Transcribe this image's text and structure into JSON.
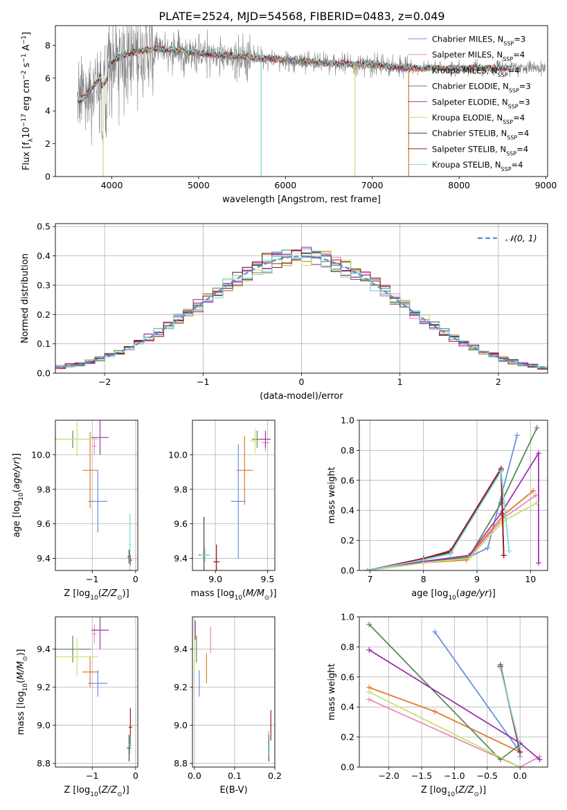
{
  "title": "PLATE=2524, MJD=54568, FIBERID=0483, z=0.049",
  "colors": {
    "chabrier_miles": "#6a8fe0",
    "salpeter_miles": "#e88ab8",
    "kroupa_miles": "#e07a2a",
    "chabrier_elodie": "#5a8a5a",
    "salpeter_elodie": "#a030b0",
    "kroupa_elodie": "#c8e070",
    "chabrier_stelib": "#404040",
    "salpeter_stelib": "#a01818",
    "kroupa_stelib": "#78d8d8",
    "data": "#808080",
    "grid": "#b0b0b0",
    "normal": "#5b88d6"
  },
  "legend": [
    {
      "key": "chabrier_miles",
      "label": "Chabrier MILES, N",
      "sub": "SSP",
      "eq": "=3"
    },
    {
      "key": "salpeter_miles",
      "label": "Salpeter MILES, N",
      "sub": "SSP",
      "eq": "=4"
    },
    {
      "key": "kroupa_miles",
      "label": "Kroupa MILES, N",
      "sub": "SSP",
      "eq": "=4"
    },
    {
      "key": "chabrier_elodie",
      "label": "Chabrier ELODIE, N",
      "sub": "SSP",
      "eq": "=3"
    },
    {
      "key": "salpeter_elodie",
      "label": "Salpeter ELODIE, N",
      "sub": "SSP",
      "eq": "=3"
    },
    {
      "key": "kroupa_elodie",
      "label": "Kroupa ELODIE, N",
      "sub": "SSP",
      "eq": "=4"
    },
    {
      "key": "chabrier_stelib",
      "label": "Chabrier STELIB, N",
      "sub": "SSP",
      "eq": "=4"
    },
    {
      "key": "salpeter_stelib",
      "label": "Salpeter STELIB, N",
      "sub": "SSP",
      "eq": "=4"
    },
    {
      "key": "kroupa_stelib",
      "label": "Kroupa STELIB, N",
      "sub": "SSP",
      "eq": "=4"
    }
  ],
  "chart_data": [
    {
      "id": "spectrum",
      "type": "line",
      "xlabel": "wavelength [Angstrom, rest frame]",
      "ylabel": "Flux [f_λ 10^-17 erg cm^-2 s^-1 A^-1]",
      "xlim": [
        3350,
        9020
      ],
      "ylim": [
        0,
        9.2
      ],
      "xticks": [
        4000,
        5000,
        6000,
        7000,
        8000,
        9000
      ],
      "yticks": [
        0,
        2,
        4,
        6,
        8
      ],
      "continuum_x": [
        3600,
        3700,
        3800,
        3900,
        4000,
        4100,
        4200,
        4300,
        4400,
        4500,
        4700,
        5000,
        5500,
        6000,
        6500,
        7000,
        7400
      ],
      "continuum_y": [
        4.5,
        4.9,
        5.6,
        6.3,
        7.0,
        7.3,
        7.5,
        7.6,
        7.7,
        7.8,
        7.7,
        7.5,
        7.3,
        7.1,
        6.9,
        6.8,
        6.6
      ],
      "models_end_x": 8600
    },
    {
      "id": "residuals",
      "type": "line",
      "xlabel": "(data-model)/error",
      "ylabel": "Normed distribution",
      "xlim": [
        -2.5,
        2.5
      ],
      "ylim": [
        0,
        0.51
      ],
      "xticks": [
        -2,
        -1,
        0,
        1,
        2
      ],
      "yticks": [
        0.0,
        0.1,
        0.2,
        0.3,
        0.4,
        0.5
      ],
      "legend": "N(0,1)",
      "bin_width": 0.1
    },
    {
      "id": "age_vs_Z",
      "type": "scatter",
      "xlabel": "Z [log10(Z/Z☉)]",
      "ylabel": "age  [log10(age/yr)]",
      "xlim": [
        -1.85,
        0.05
      ],
      "ylim": [
        9.33,
        10.2
      ],
      "xticks": [
        -1,
        0
      ],
      "yticks": [
        9.4,
        9.6,
        9.8,
        10.0
      ],
      "points": [
        {
          "key": "chabrier_miles",
          "x": -0.87,
          "y": 9.73,
          "xerr": 0.22,
          "yerr": 0.18
        },
        {
          "key": "salpeter_miles",
          "x": -0.95,
          "y": 10.05,
          "xerr": 0.05,
          "yerr": 0.05
        },
        {
          "key": "kroupa_miles",
          "x": -1.05,
          "y": 9.91,
          "xerr": 0.18,
          "yerr": 0.22
        },
        {
          "key": "chabrier_elodie",
          "x": -1.45,
          "y": 10.09,
          "xerr": 0.42,
          "yerr": 0.05
        },
        {
          "key": "salpeter_elodie",
          "x": -0.82,
          "y": 10.1,
          "xerr": 0.2,
          "yerr": 0.1
        },
        {
          "key": "kroupa_elodie",
          "x": -1.35,
          "y": 10.09,
          "xerr": 0.48,
          "yerr": 0.1
        },
        {
          "key": "chabrier_stelib",
          "x": -0.15,
          "y": 9.41,
          "xerr": 0.04,
          "yerr": 0.04
        },
        {
          "key": "salpeter_stelib",
          "x": -0.12,
          "y": 9.39,
          "xerr": 0.04,
          "yerr": 0.03
        },
        {
          "key": "kroupa_stelib",
          "x": -0.13,
          "y": 9.48,
          "xerr": 0.02,
          "yerr": 0.18
        }
      ]
    },
    {
      "id": "age_vs_mass",
      "type": "scatter",
      "xlabel": "mass [log10(M/M☉)]",
      "ylabel": "",
      "xlim": [
        8.78,
        9.57
      ],
      "ylim": [
        9.33,
        10.2
      ],
      "xticks": [
        9.0,
        9.5
      ],
      "yticks": [
        9.4,
        9.6,
        9.8,
        10.0
      ],
      "points": [
        {
          "key": "chabrier_miles",
          "x": 9.22,
          "y": 9.73,
          "xerr": 0.07,
          "yerr": 0.33
        },
        {
          "key": "salpeter_miles",
          "x": 9.48,
          "y": 10.07,
          "xerr": 0.04,
          "yerr": 0.05
        },
        {
          "key": "kroupa_miles",
          "x": 9.28,
          "y": 9.91,
          "xerr": 0.08,
          "yerr": 0.2
        },
        {
          "key": "chabrier_elodie",
          "x": 9.4,
          "y": 10.09,
          "xerr": 0.05,
          "yerr": 0.05
        },
        {
          "key": "salpeter_elodie",
          "x": 9.48,
          "y": 10.09,
          "xerr": 0.05,
          "yerr": 0.05
        },
        {
          "key": "kroupa_elodie",
          "x": 9.38,
          "y": 10.08,
          "xerr": 0.05,
          "yerr": 0.07
        },
        {
          "key": "chabrier_stelib",
          "x": 8.89,
          "y": 9.42,
          "xerr": 0.05,
          "yerr": 0.22
        },
        {
          "key": "salpeter_stelib",
          "x": 9.01,
          "y": 9.38,
          "xerr": 0.03,
          "yerr": 0.1
        },
        {
          "key": "kroupa_stelib",
          "x": 8.9,
          "y": 9.42,
          "xerr": 0.05,
          "yerr": 0.04
        }
      ]
    },
    {
      "id": "weight_vs_age",
      "type": "line",
      "xlabel": "age  [log10(age/yr)]",
      "ylabel": "mass weight",
      "xlim": [
        6.8,
        10.32
      ],
      "ylim": [
        0,
        1.0
      ],
      "xticks": [
        7,
        8,
        9,
        10
      ],
      "yticks": [
        0.0,
        0.2,
        0.4,
        0.6,
        0.8,
        1.0
      ],
      "series": [
        {
          "key": "chabrier_miles",
          "x": [
            6.95,
            8.0,
            8.8,
            9.2,
            9.75
          ],
          "y": [
            0.0,
            0.06,
            0.08,
            0.15,
            0.9
          ]
        },
        {
          "key": "salpeter_miles",
          "x": [
            6.95,
            8.0,
            8.8,
            9.5,
            10.1
          ],
          "y": [
            0.0,
            0.05,
            0.07,
            0.35,
            0.5
          ]
        },
        {
          "key": "kroupa_miles",
          "x": [
            6.95,
            8.0,
            8.8,
            9.5,
            10.05
          ],
          "y": [
            0.0,
            0.05,
            0.07,
            0.37,
            0.53
          ]
        },
        {
          "key": "chabrier_elodie",
          "x": [
            6.95,
            8.0,
            8.85,
            9.45,
            10.12
          ],
          "y": [
            0.0,
            0.06,
            0.09,
            0.45,
            0.95
          ]
        },
        {
          "key": "salpeter_elodie",
          "x": [
            6.95,
            8.0,
            8.85,
            9.45,
            10.15,
            10.15
          ],
          "y": [
            0.0,
            0.06,
            0.1,
            0.38,
            0.78,
            0.05
          ]
        },
        {
          "key": "kroupa_elodie",
          "x": [
            6.95,
            8.0,
            8.85,
            9.5,
            10.12
          ],
          "y": [
            0.0,
            0.05,
            0.08,
            0.33,
            0.45
          ]
        },
        {
          "key": "chabrier_stelib",
          "x": [
            6.95,
            8.0,
            8.5,
            9.45,
            9.5
          ],
          "y": [
            0.0,
            0.08,
            0.12,
            0.67,
            0.1
          ]
        },
        {
          "key": "salpeter_stelib",
          "x": [
            6.95,
            8.0,
            8.5,
            9.45,
            9.5
          ],
          "y": [
            0.0,
            0.08,
            0.13,
            0.68,
            0.1
          ]
        },
        {
          "key": "kroupa_stelib",
          "x": [
            6.95,
            8.0,
            8.5,
            9.45,
            9.6
          ],
          "y": [
            0.0,
            0.07,
            0.11,
            0.66,
            0.13
          ]
        }
      ]
    },
    {
      "id": "mass_vs_Z",
      "type": "scatter",
      "xlabel": "Z [log10(Z/Z☉)]",
      "ylabel": "mass [log10(M/M☉)]",
      "xlim": [
        -1.85,
        0.05
      ],
      "ylim": [
        8.78,
        9.57
      ],
      "xticks": [
        -1,
        0
      ],
      "yticks": [
        8.8,
        9.0,
        9.2,
        9.4
      ],
      "points": [
        {
          "key": "chabrier_miles",
          "x": -0.87,
          "y": 9.22,
          "xerr": 0.22,
          "yerr": 0.07
        },
        {
          "key": "salpeter_miles",
          "x": -0.95,
          "y": 9.48,
          "xerr": 0.05,
          "yerr": 0.05
        },
        {
          "key": "kroupa_miles",
          "x": -1.05,
          "y": 9.28,
          "xerr": 0.18,
          "yerr": 0.08
        },
        {
          "key": "chabrier_elodie",
          "x": -1.45,
          "y": 9.4,
          "xerr": 0.42,
          "yerr": 0.07
        },
        {
          "key": "salpeter_elodie",
          "x": -0.82,
          "y": 9.5,
          "xerr": 0.2,
          "yerr": 0.1
        },
        {
          "key": "kroupa_elodie",
          "x": -1.35,
          "y": 9.36,
          "xerr": 0.48,
          "yerr": 0.1
        },
        {
          "key": "chabrier_stelib",
          "x": -0.15,
          "y": 8.88,
          "xerr": 0.05,
          "yerr": 0.07
        },
        {
          "key": "salpeter_stelib",
          "x": -0.12,
          "y": 8.99,
          "xerr": 0.04,
          "yerr": 0.1
        },
        {
          "key": "kroupa_stelib",
          "x": -0.13,
          "y": 8.9,
          "xerr": 0.03,
          "yerr": 0.05
        }
      ]
    },
    {
      "id": "mass_vs_ebv",
      "type": "scatter",
      "xlabel": "E(B-V)",
      "ylabel": "",
      "xlim": [
        -0.005,
        0.2
      ],
      "ylim": [
        8.78,
        9.57
      ],
      "xticks": [
        0.0,
        0.1,
        0.2
      ],
      "yticks": [
        8.8,
        9.0,
        9.2,
        9.4
      ],
      "points": [
        {
          "key": "chabrier_miles",
          "x": 0.012,
          "y": 9.22,
          "xerr": 0,
          "yerr": 0.07
        },
        {
          "key": "salpeter_miles",
          "x": 0.04,
          "y": 9.45,
          "xerr": 0,
          "yerr": 0.07
        },
        {
          "key": "kroupa_miles",
          "x": 0.03,
          "y": 9.3,
          "xerr": 0,
          "yerr": 0.08
        },
        {
          "key": "chabrier_elodie",
          "x": 0.005,
          "y": 9.4,
          "xerr": 0,
          "yerr": 0.07
        },
        {
          "key": "salpeter_elodie",
          "x": 0.002,
          "y": 9.5,
          "xerr": 0,
          "yerr": 0.05
        },
        {
          "key": "kroupa_elodie",
          "x": 0.0,
          "y": 9.38,
          "xerr": 0,
          "yerr": 0.1
        },
        {
          "key": "chabrier_stelib",
          "x": 0.185,
          "y": 8.88,
          "xerr": 0,
          "yerr": 0.07
        },
        {
          "key": "salpeter_stelib",
          "x": 0.19,
          "y": 9.0,
          "xerr": 0,
          "yerr": 0.08
        },
        {
          "key": "kroupa_stelib",
          "x": 0.184,
          "y": 8.9,
          "xerr": 0,
          "yerr": 0.07
        }
      ]
    },
    {
      "id": "weight_vs_Z",
      "type": "line",
      "xlabel": "Z [log10(Z/Z☉)]",
      "ylabel": "mass weight",
      "xlim": [
        -2.45,
        0.42
      ],
      "ylim": [
        0,
        1.0
      ],
      "xticks": [
        -2.0,
        -1.5,
        -1.0,
        -0.5,
        0.0
      ],
      "yticks": [
        0.0,
        0.2,
        0.4,
        0.6,
        0.8,
        1.0
      ],
      "series": [
        {
          "key": "chabrier_miles",
          "x": [
            -1.3,
            0.0,
            0.0
          ],
          "y": [
            0.9,
            0.1,
            0.07
          ]
        },
        {
          "key": "salpeter_miles",
          "x": [
            -2.3,
            0.0,
            0.3
          ],
          "y": [
            0.45,
            0.0,
            0.07
          ]
        },
        {
          "key": "kroupa_miles",
          "x": [
            -2.3,
            -1.3,
            0.0
          ],
          "y": [
            0.53,
            0.37,
            0.1
          ]
        },
        {
          "key": "chabrier_elodie",
          "x": [
            -2.3,
            -0.3,
            0.0
          ],
          "y": [
            0.95,
            0.05,
            0.15
          ]
        },
        {
          "key": "salpeter_elodie",
          "x": [
            -2.3,
            0.0,
            0.3
          ],
          "y": [
            0.78,
            0.16,
            0.05
          ]
        },
        {
          "key": "kroupa_elodie",
          "x": [
            -2.3,
            0.0
          ],
          "y": [
            0.5,
            0.0
          ]
        },
        {
          "key": "chabrier_stelib",
          "x": [
            -0.3,
            0.0
          ],
          "y": [
            0.68,
            0.1
          ]
        },
        {
          "key": "salpeter_stelib",
          "x": [
            -0.3,
            0.0
          ],
          "y": [
            0.67,
            0.1
          ]
        },
        {
          "key": "kroupa_stelib",
          "x": [
            -0.3,
            0.0
          ],
          "y": [
            0.66,
            0.13
          ]
        }
      ]
    }
  ]
}
